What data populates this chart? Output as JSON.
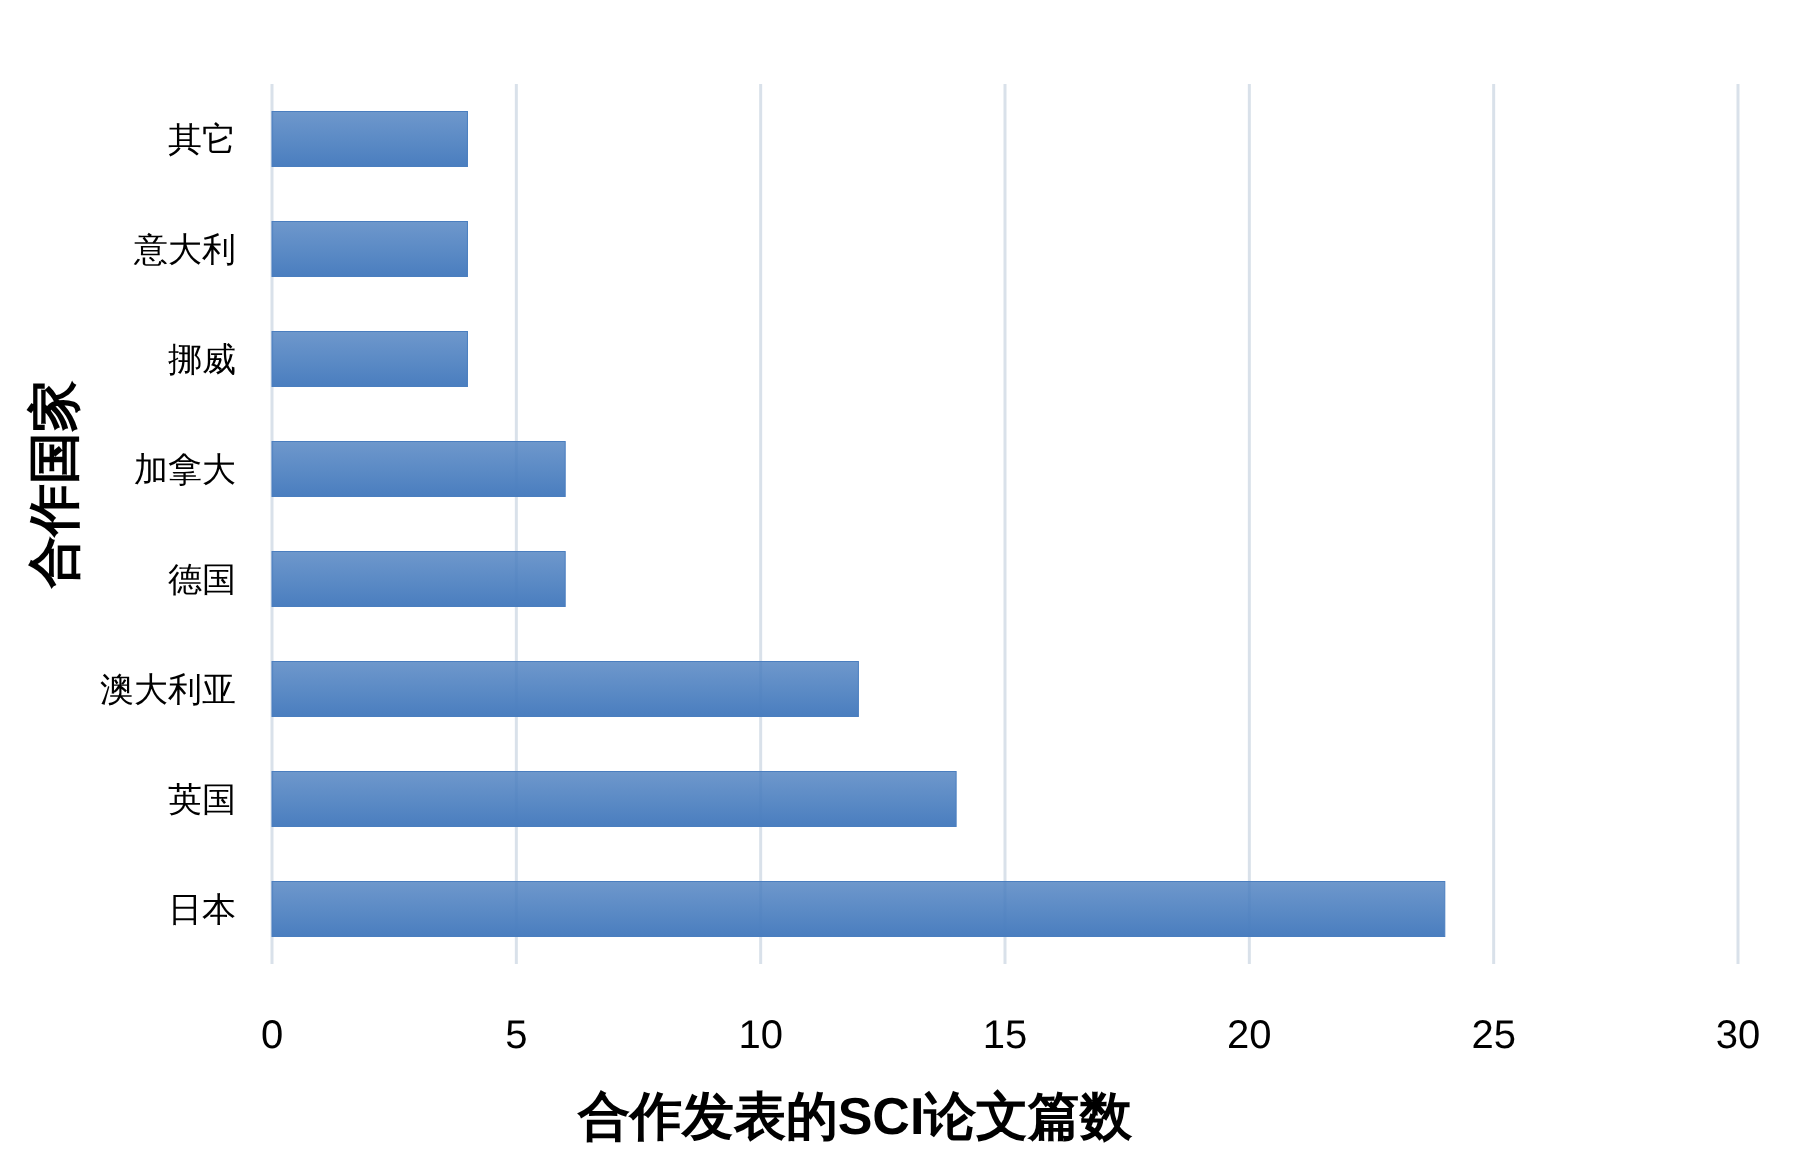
{
  "chart_data": {
    "type": "bar",
    "orientation": "horizontal",
    "xlabel": "合作发表的SCI论文篇数",
    "ylabel": "合作国家",
    "categories": [
      "其它",
      "意大利",
      "挪威",
      "加拿大",
      "德国",
      "澳大利亚",
      "英国",
      "日本"
    ],
    "series": [
      {
        "color": "#4a7ebf",
        "values": [
          4,
          4,
          4,
          6,
          6,
          12,
          14,
          24
        ]
      }
    ],
    "xlim": [
      0,
      30
    ],
    "xticks": [
      0,
      5,
      10,
      15,
      20,
      25,
      30
    ],
    "grid": "x"
  }
}
